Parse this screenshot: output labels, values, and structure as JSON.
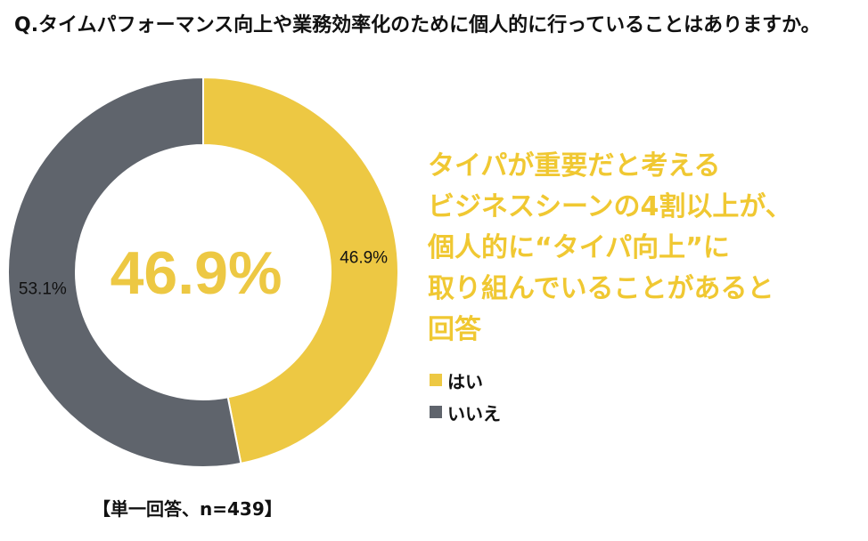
{
  "question": "Q.タイムパフォーマンス向上や業務効率化のために個人的に行っていることはありますか。",
  "headline": [
    "タイパが重要だと考える",
    "ビジネスシーンの4割以上が、",
    "個人的に“タイパ向上”に",
    "取り組んでいることがあると",
    "回答"
  ],
  "footnote": "【単一回答、n=439】",
  "colors": {
    "yes": "#edc843",
    "no": "#5f646c",
    "headline": "#f0c832",
    "center": "#edc843"
  },
  "chart_data": {
    "type": "pie",
    "style": "donut",
    "center_label": "46.9%",
    "slices": [
      {
        "name": "はい",
        "value": 46.9,
        "label": "46.9%",
        "color": "#edc843"
      },
      {
        "name": "いいえ",
        "value": 53.1,
        "label": "53.1%",
        "color": "#5f646c"
      }
    ],
    "legend": [
      "はい",
      "いいえ"
    ],
    "legend_position": "right"
  }
}
